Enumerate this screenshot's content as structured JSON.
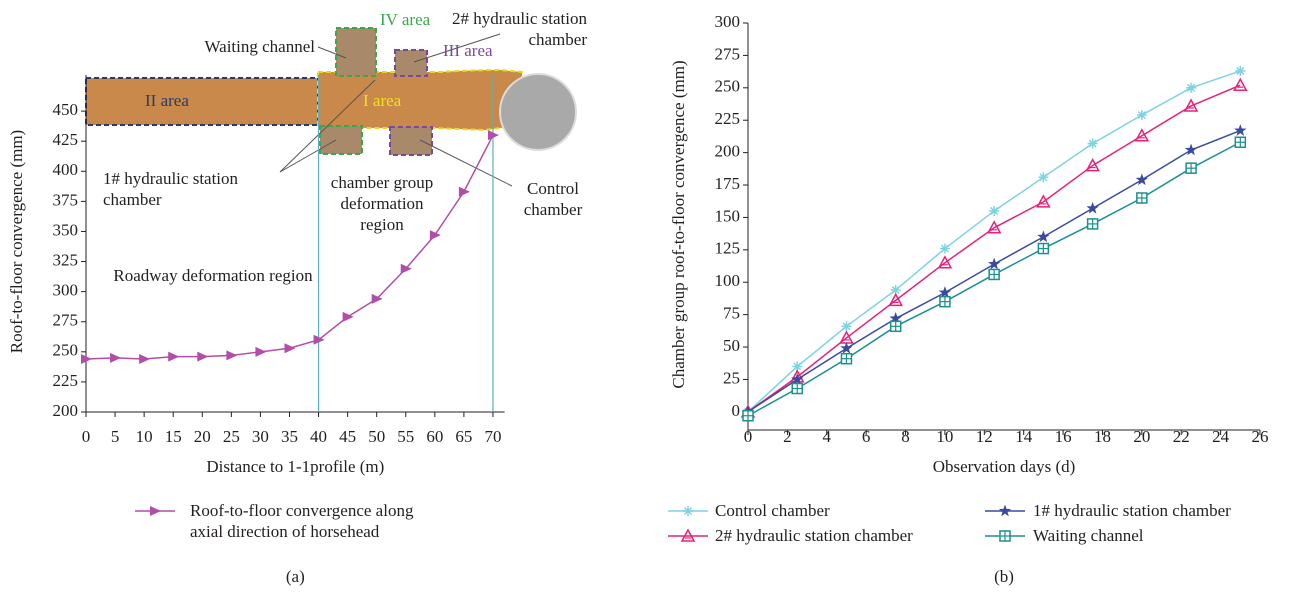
{
  "chart_data": [
    {
      "type": "line",
      "panel_label": "(a)",
      "xlabel": "Distance to 1-1profile (m)",
      "ylabel": "Roof-to-floor convergence (mm)",
      "x": [
        0,
        5,
        10,
        15,
        20,
        25,
        30,
        35,
        40,
        45,
        50,
        55,
        60,
        65,
        70
      ],
      "series": [
        {
          "name": "Roof-to-floor convergence along axial direction of horsehead",
          "color": "#b24ea8",
          "marker": "triangle-right",
          "values": [
            244,
            245,
            244,
            246,
            246,
            247,
            250,
            253,
            260,
            279,
            294,
            319,
            347,
            383,
            430
          ]
        }
      ],
      "xlim": [
        0,
        72
      ],
      "ylim": [
        200,
        480
      ],
      "xticks": [
        0,
        5,
        10,
        15,
        20,
        25,
        30,
        35,
        40,
        45,
        50,
        55,
        60,
        65,
        70
      ],
      "yticks": [
        200,
        225,
        250,
        275,
        300,
        325,
        350,
        375,
        400,
        425,
        450
      ],
      "vlines": [
        40,
        70
      ],
      "vline_color": "#5ab0c0",
      "annotations": [
        {
          "text": "Waiting channel",
          "color": "#231f20"
        },
        {
          "text": "IV area",
          "color": "#3aa84a"
        },
        {
          "text": "2# hydraulic station chamber",
          "color": "#231f20"
        },
        {
          "text": "III area",
          "color": "#7a4a9a"
        },
        {
          "text": "II area",
          "color": "#2a3a6a"
        },
        {
          "text": "I area",
          "color": "#f0e020"
        },
        {
          "text": "1# hydraulic station chamber",
          "color": "#231f20"
        },
        {
          "text": "chamber group deformation region",
          "color": "#231f20"
        },
        {
          "text": "Control chamber",
          "color": "#231f20"
        },
        {
          "text": "Roadway deformation region",
          "color": "#231f20"
        }
      ]
    },
    {
      "type": "line",
      "panel_label": "(b)",
      "xlabel": "Observation days (d)",
      "ylabel": "Chamber group roof-to-floor convergence (mm)",
      "x": [
        0,
        2.5,
        5,
        7.5,
        10,
        12.5,
        15,
        17.5,
        20,
        22.5,
        25
      ],
      "series": [
        {
          "name": "Control chamber",
          "color": "#7fd3e0",
          "marker": "asterisk",
          "values": [
            0,
            35,
            66,
            94,
            126,
            155,
            181,
            207,
            229,
            250,
            263
          ]
        },
        {
          "name": "2# hydraulic station chamber",
          "color": "#e8207a",
          "marker": "triangle",
          "values": [
            0,
            27,
            57,
            86,
            115,
            142,
            162,
            190,
            213,
            236,
            252
          ]
        },
        {
          "name": "1# hydraulic station chamber",
          "color": "#3b4aa0",
          "marker": "star",
          "values": [
            0,
            25,
            49,
            72,
            92,
            114,
            135,
            157,
            179,
            202,
            217
          ]
        },
        {
          "name": "Waiting channel",
          "color": "#1a9090",
          "marker": "square-plus",
          "values": [
            -3,
            18,
            41,
            66,
            85,
            106,
            126,
            145,
            165,
            188,
            208
          ]
        }
      ],
      "xlim": [
        0,
        26
      ],
      "ylim": [
        -14,
        300
      ],
      "xticks": [
        0,
        2,
        4,
        6,
        8,
        10,
        12,
        14,
        16,
        18,
        20,
        22,
        24,
        26
      ],
      "yticks": [
        0,
        25,
        50,
        75,
        100,
        125,
        150,
        175,
        200,
        225,
        250,
        275,
        300
      ]
    }
  ]
}
